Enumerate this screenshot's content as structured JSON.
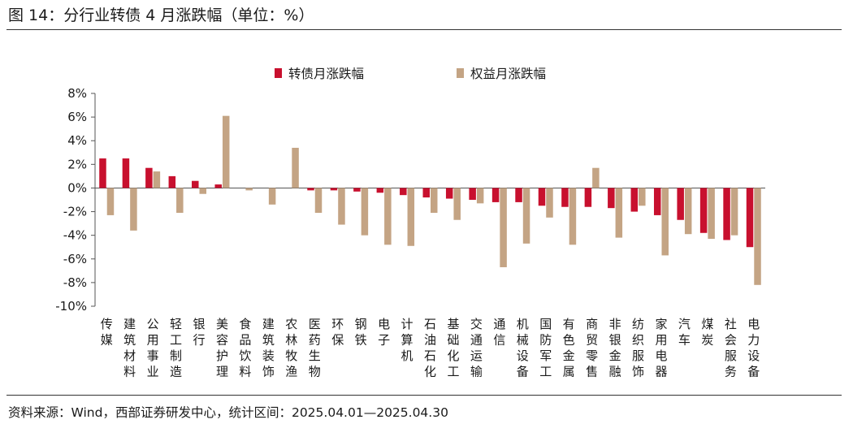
{
  "title": "图 14：分行业转债 4 月涨跌幅（单位：%）",
  "source": "资料来源：Wind，西部证券研发中心，统计区间：2025.04.01—2025.04.30",
  "colors": {
    "bond": "#c8102e",
    "equity": "#c4a484",
    "axis": "#555555"
  },
  "chart_data": {
    "type": "bar",
    "title": "分行业转债 4 月涨跌幅（单位：%）",
    "ylabel": "%",
    "ylim": [
      -10,
      8
    ],
    "yticks": [
      8,
      6,
      4,
      2,
      0,
      -2,
      -4,
      -6,
      -8,
      -10
    ],
    "ytick_labels": [
      "8%",
      "6%",
      "4%",
      "2%",
      "0%",
      "-2%",
      "-4%",
      "-6%",
      "-8%",
      "-10%"
    ],
    "legend_position": "top-center",
    "categories": [
      "传媒",
      "建筑材料",
      "公用事业",
      "轻工制造",
      "银行",
      "美容护理",
      "食品饮料",
      "建筑装饰",
      "农林牧渔",
      "医药生物",
      "环保",
      "钢铁",
      "电子",
      "计算机",
      "石油石化",
      "基础化工",
      "交通运输",
      "通信",
      "机械设备",
      "国防军工",
      "有色金属",
      "商贸零售",
      "非银金融",
      "纺织服饰",
      "家用电器",
      "汽车",
      "煤炭",
      "社会服务",
      "电力设备"
    ],
    "series": [
      {
        "name": "转债月涨跌幅",
        "values": [
          2.5,
          2.5,
          1.7,
          1.0,
          0.6,
          0.3,
          0.0,
          0.0,
          0.0,
          -0.2,
          -0.2,
          -0.3,
          -0.4,
          -0.6,
          -0.8,
          -0.9,
          -1.0,
          -1.2,
          -1.2,
          -1.5,
          -1.6,
          -1.6,
          -1.7,
          -2.0,
          -2.3,
          -2.7,
          -3.8,
          -4.4,
          -5.0
        ]
      },
      {
        "name": "权益月涨跌幅",
        "values": [
          -2.3,
          -3.6,
          1.4,
          -2.1,
          -0.5,
          6.1,
          -0.2,
          -1.4,
          3.4,
          -2.1,
          -3.1,
          -4.0,
          -4.8,
          -4.9,
          -2.1,
          -2.7,
          -1.3,
          -6.7,
          -4.7,
          -2.5,
          -4.8,
          1.7,
          -4.2,
          -1.5,
          -5.7,
          -3.9,
          -4.3,
          -4.0,
          -8.2
        ]
      }
    ]
  }
}
